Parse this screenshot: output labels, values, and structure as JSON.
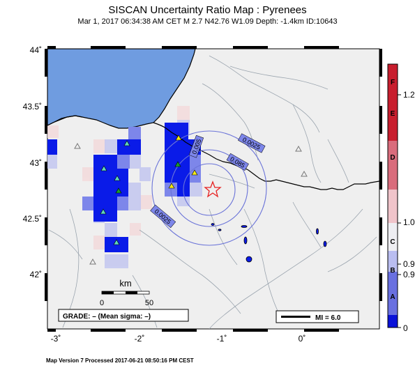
{
  "header": {
    "title": "SISCAN Uncertainty Ratio Map : Pyrenees",
    "subtitle": "Mar  1, 2017 06:34:38 AM CET   M 2.7   N42.76 W1.09   Depth: -1.4km   ID:10643"
  },
  "footer": {
    "text": "Map Version 7 Processed 2017-06-21 08:50:16 PM CEST"
  },
  "map": {
    "lat_labels": [
      "44˚",
      "43.5˚",
      "43˚",
      "42.5˚",
      "42˚"
    ],
    "lon_labels": [
      "-3˚",
      "-2˚",
      "-1˚",
      "0˚"
    ],
    "contour_labels": [
      "0.0025",
      "0.005",
      "0.085",
      "0.0025"
    ],
    "scale": {
      "title": "km",
      "min": "0",
      "max": "50"
    },
    "grade_box": "GRADE: – (Mean sigma: –)",
    "mi_box": "MI = 6.0",
    "colors": {
      "sea": "#6f9ce0",
      "land": "#efefef",
      "cell_dark": "#0a1be8",
      "cell_med": "#7d86ea",
      "cell_light": "#c5c9f0",
      "cell_pink": "#f3dadc",
      "epicenter": "#e62020",
      "station_yellow": "#f6ea14",
      "station_green": "#1a9e2a",
      "station_cyan": "#61d6bb"
    }
  },
  "colorbar": {
    "letters": [
      "F",
      "E",
      "D",
      "C",
      "B",
      "A"
    ],
    "right_ticks": [
      "1.2",
      "1.0",
      "0.9",
      "0.9",
      "0"
    ],
    "colors": [
      "#c81e2e",
      "#d96c7c",
      "#f0c4ca",
      "#eeeef2",
      "#b9bdf0",
      "#6970e0",
      "#0a12d8"
    ]
  }
}
